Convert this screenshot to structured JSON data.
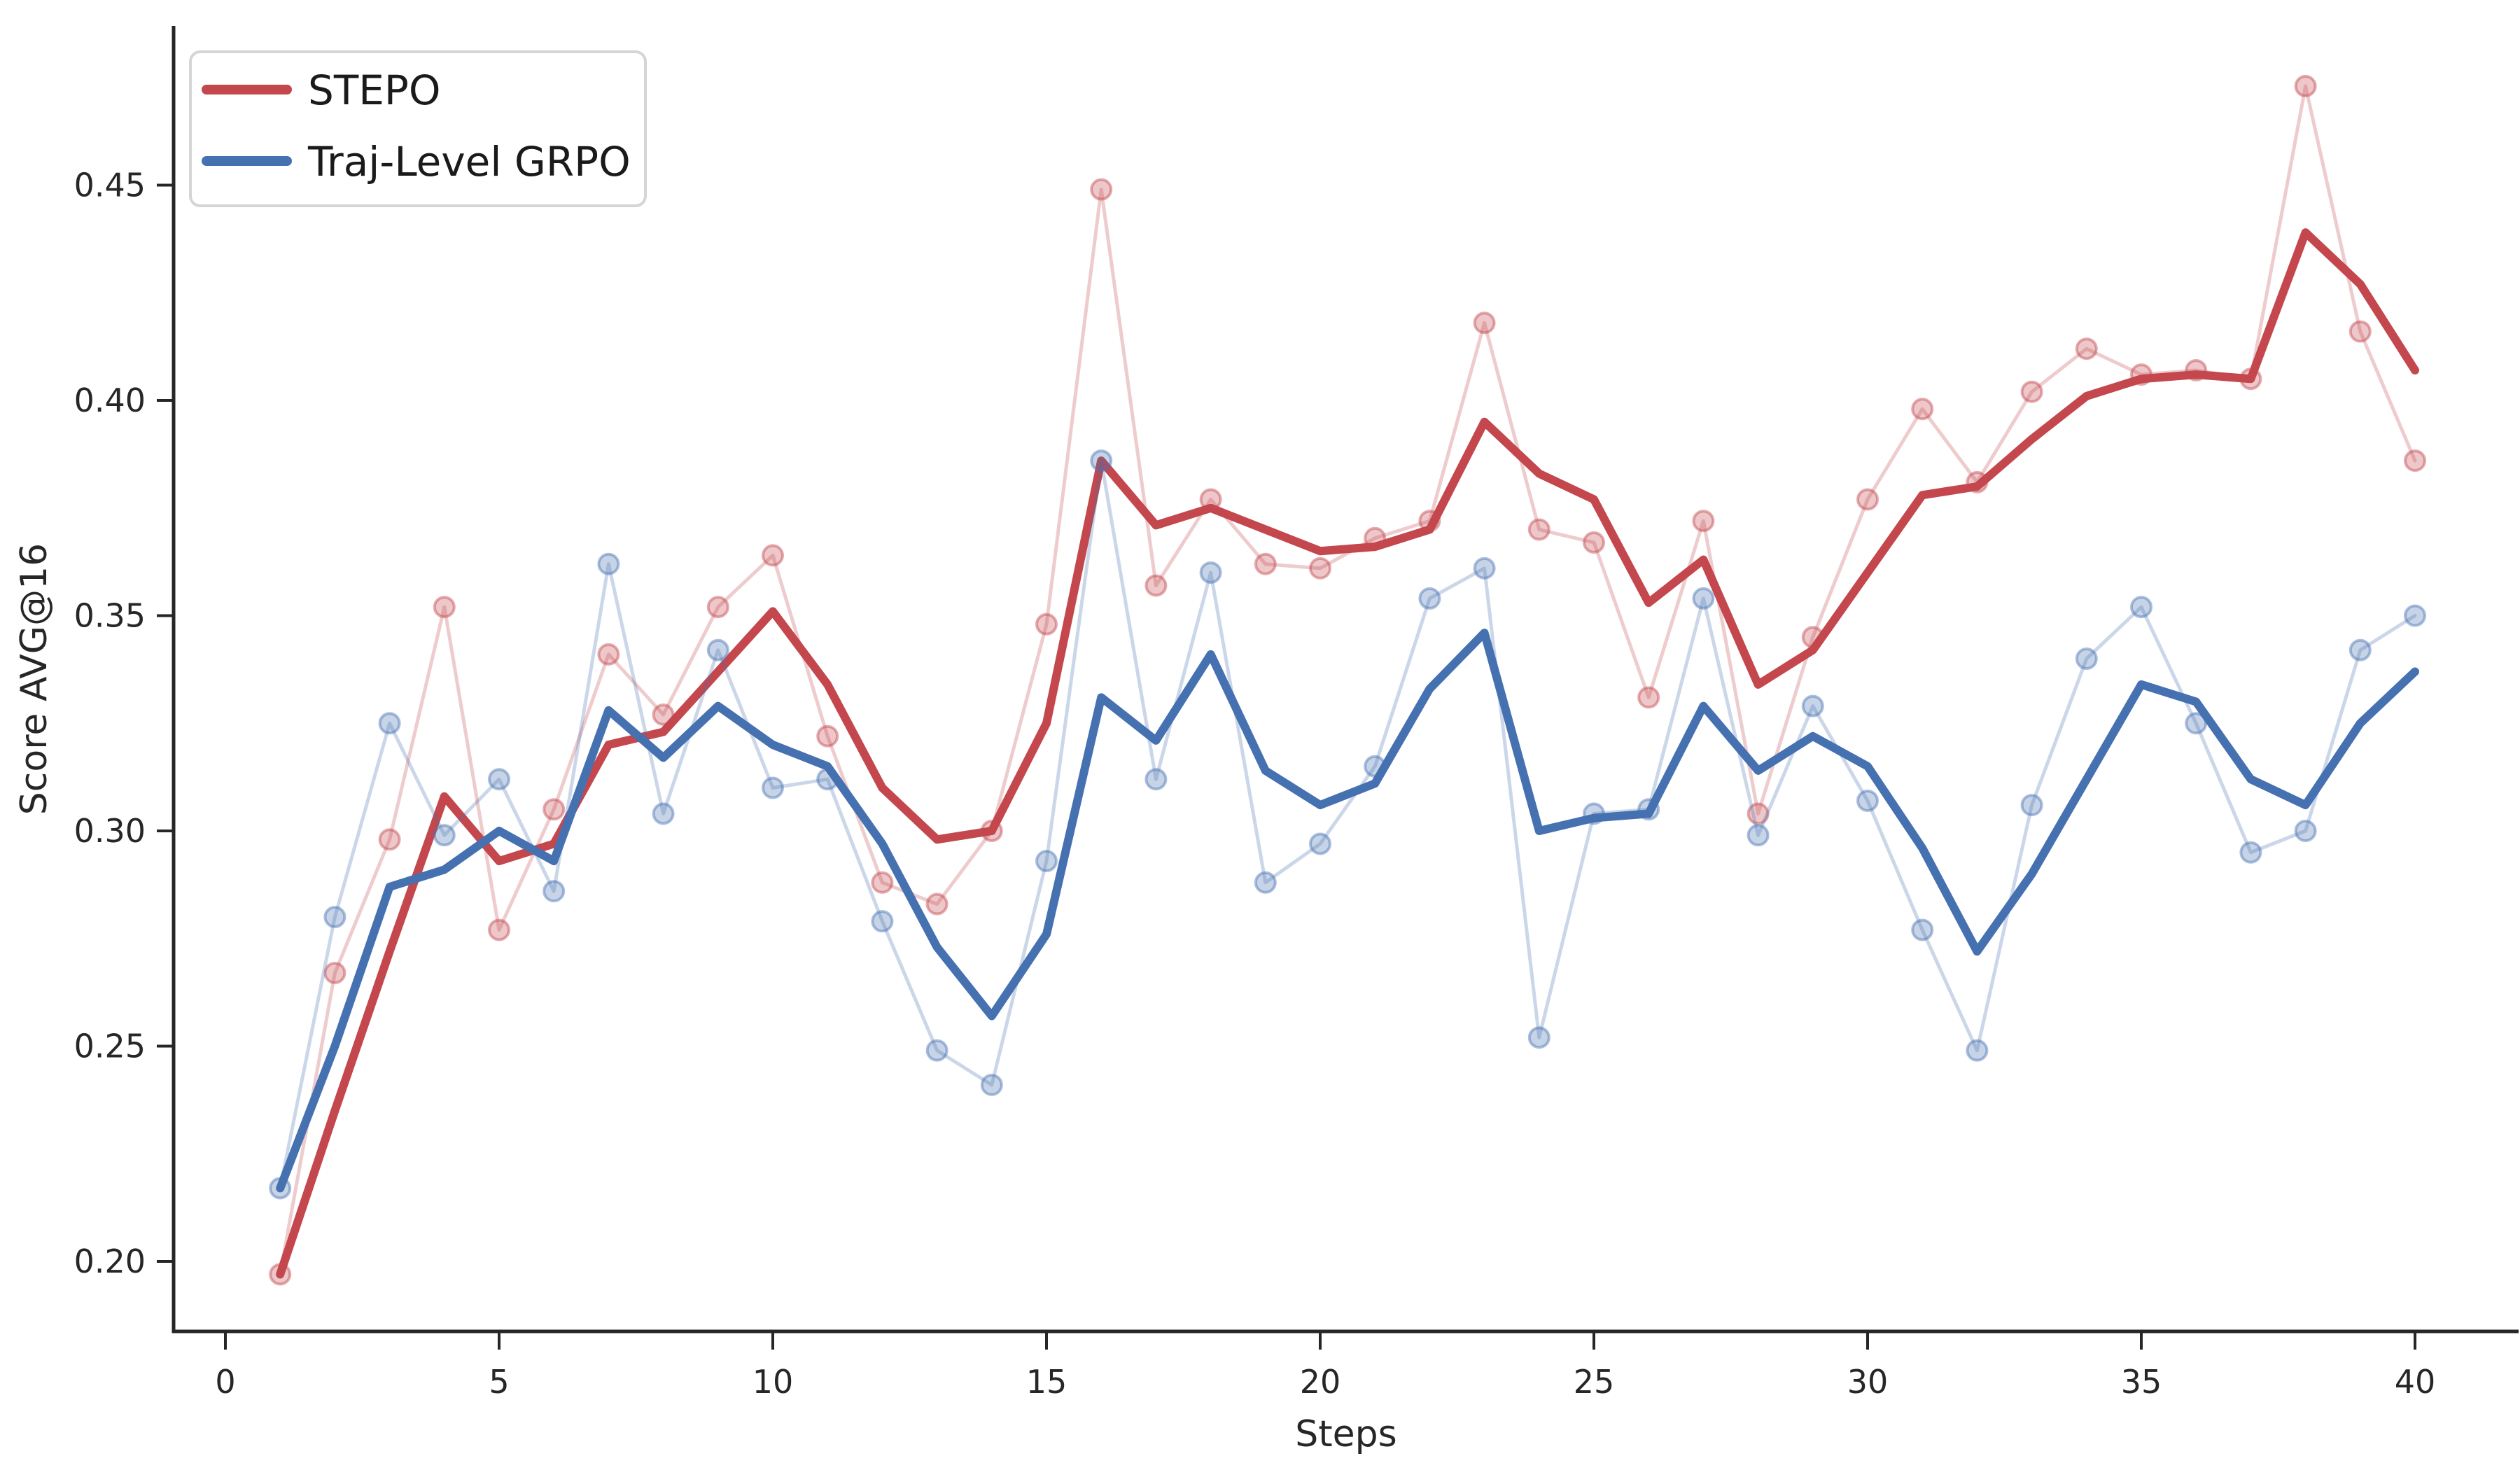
{
  "figure": {
    "background_color": "#ffffff",
    "axis_color": "#262626",
    "legend_border_color": "#d5d5d5"
  },
  "chart_data": {
    "type": "line",
    "title": "",
    "xlabel": "Steps",
    "ylabel": "Score AVG@16",
    "grid": false,
    "legend_position": "upper-left",
    "xlim": [
      -0.95,
      41.9
    ],
    "ylim": [
      0.183,
      0.487
    ],
    "x_ticks": [
      0,
      5,
      10,
      15,
      20,
      25,
      30,
      35,
      40
    ],
    "x_tick_labels": [
      "0",
      "5",
      "10",
      "15",
      "20",
      "25",
      "30",
      "35",
      "40"
    ],
    "y_ticks": [
      0.2,
      0.25,
      0.3,
      0.35,
      0.4,
      0.45
    ],
    "y_tick_labels": [
      "0.20",
      "0.25",
      "0.30",
      "0.35",
      "0.40",
      "0.45"
    ],
    "steps": [
      1,
      2,
      3,
      4,
      5,
      6,
      7,
      8,
      9,
      10,
      11,
      12,
      13,
      14,
      15,
      16,
      17,
      18,
      19,
      20,
      21,
      22,
      23,
      24,
      25,
      26,
      27,
      28,
      29,
      30,
      31,
      32,
      33,
      34,
      35,
      36,
      37,
      38,
      39,
      40
    ],
    "series": [
      {
        "name": "STEPO",
        "color": "#c3474d",
        "raw": [
          0.197,
          0.267,
          0.298,
          0.352,
          0.277,
          0.305,
          0.341,
          0.327,
          0.352,
          0.364,
          0.322,
          0.288,
          0.283,
          0.3,
          0.348,
          0.449,
          0.357,
          0.377,
          0.362,
          0.361,
          0.368,
          0.372,
          0.418,
          0.37,
          0.367,
          0.331,
          0.372,
          0.304,
          0.345,
          0.377,
          0.398,
          0.381,
          0.402,
          0.412,
          0.406,
          0.407,
          0.405,
          0.473,
          0.416,
          0.386
        ],
        "smoothed": [
          0.197,
          0.235,
          0.272,
          0.308,
          0.293,
          0.297,
          0.32,
          0.323,
          0.337,
          0.351,
          0.334,
          0.31,
          0.298,
          0.3,
          0.325,
          0.386,
          0.371,
          0.375,
          0.37,
          0.365,
          0.366,
          0.37,
          0.395,
          0.383,
          0.377,
          0.353,
          0.363,
          0.334,
          0.342,
          0.36,
          0.378,
          0.38,
          0.391,
          0.401,
          0.405,
          0.406,
          0.405,
          0.439,
          0.427,
          0.407
        ]
      },
      {
        "name": "Traj-Level GRPO",
        "color": "#4671b1",
        "raw": [
          0.217,
          0.28,
          0.325,
          0.299,
          0.312,
          0.286,
          0.362,
          0.304,
          0.342,
          0.31,
          0.312,
          0.279,
          0.249,
          0.241,
          0.293,
          0.386,
          0.312,
          0.36,
          0.288,
          0.297,
          0.315,
          0.354,
          0.361,
          0.252,
          0.304,
          0.305,
          0.354,
          0.299,
          0.329,
          0.307,
          0.277,
          0.249,
          0.306,
          0.34,
          0.352,
          0.325,
          0.295,
          0.3,
          0.342,
          0.35
        ],
        "smoothed": [
          0.217,
          0.25,
          0.287,
          0.291,
          0.3,
          0.293,
          0.328,
          0.317,
          0.329,
          0.32,
          0.315,
          0.297,
          0.273,
          0.257,
          0.276,
          0.331,
          0.321,
          0.341,
          0.314,
          0.306,
          0.311,
          0.333,
          0.346,
          0.3,
          0.303,
          0.304,
          0.329,
          0.314,
          0.322,
          0.315,
          0.296,
          0.272,
          0.29,
          0.312,
          0.334,
          0.33,
          0.312,
          0.306,
          0.325,
          0.337
        ]
      }
    ],
    "style": {
      "raw_line_width": 5,
      "raw_line_opacity": 0.28,
      "marker_radius": 14,
      "marker_fill_opacity": 0.3,
      "marker_edge_opacity": 0.45,
      "marker_edge_width": 4,
      "smoothed_line_width": 12
    }
  },
  "legend": {
    "items": [
      {
        "label": "STEPO"
      },
      {
        "label": "Traj-Level GRPO"
      }
    ]
  }
}
